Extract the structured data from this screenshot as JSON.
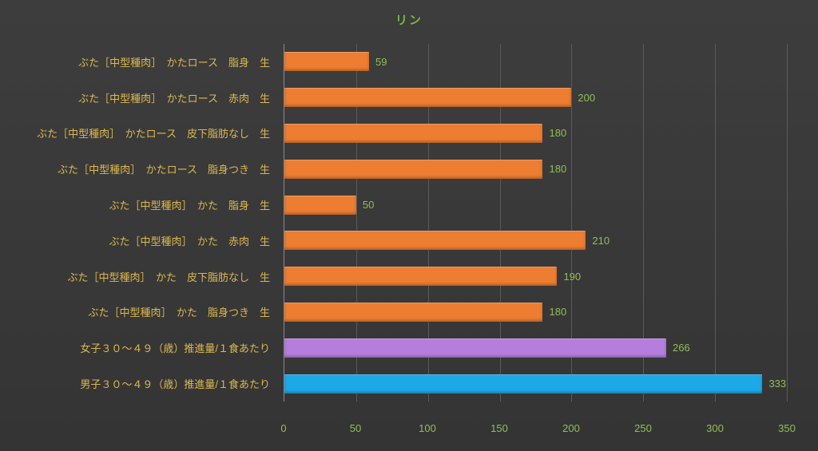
{
  "chart_data": {
    "type": "bar",
    "orientation": "horizontal",
    "title": "リン",
    "categories": [
      "ぶた［中型種肉］　かたロース　脂身　生",
      "ぶた［中型種肉］　かたロース　赤肉　生",
      "ぶた［中型種肉］　かたロース　皮下脂肪なし　生",
      "ぶた［中型種肉］　かたロース　脂身つき　生",
      "ぶた［中型種肉］　かた　脂身　生",
      "ぶた［中型種肉］　かた　赤肉　生",
      "ぶた［中型種肉］　かた　皮下脂肪なし　生",
      "ぶた［中型種肉］　かた　脂身つき　生",
      "女子３０～４９（歳）推進量/１食あたり",
      "男子３０～４９（歳）推進量/１食あたり"
    ],
    "values": [
      59,
      200,
      180,
      180,
      50,
      210,
      190,
      180,
      266,
      333
    ],
    "value_labels": [
      "59",
      "200",
      "180",
      "180",
      "50",
      "210",
      "190",
      "180",
      "266",
      "333"
    ],
    "bar_colors": [
      "#ED7D31",
      "#ED7D31",
      "#ED7D31",
      "#ED7D31",
      "#ED7D31",
      "#ED7D31",
      "#ED7D31",
      "#ED7D31",
      "#B57EDC",
      "#1CA9E8"
    ],
    "xlim": [
      0,
      350
    ],
    "x_ticks": [
      0,
      50,
      100,
      150,
      200,
      250,
      300,
      350
    ],
    "grid": "vertical",
    "legend": "none",
    "colors": {
      "background": "#3A3A3A",
      "title": "#76B83F",
      "category_label": "#DDB84F",
      "value_label": "#8DC054",
      "tick_label": "#8DC054",
      "gridline": "#5A5A5A",
      "axis_line": "#8A8A8A",
      "bar_orange": "#ED7D31",
      "bar_purple": "#B57EDC",
      "bar_blue": "#1CA9E8"
    }
  }
}
